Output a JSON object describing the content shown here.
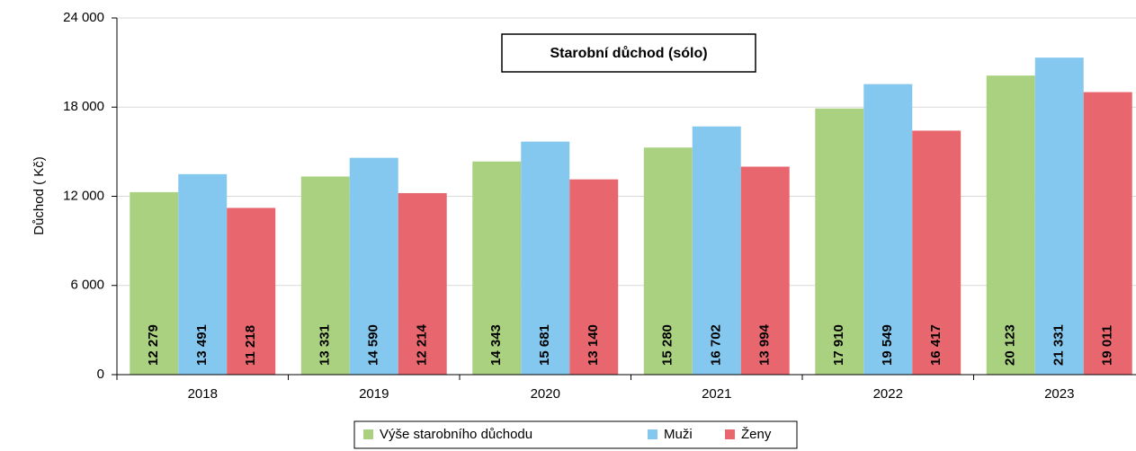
{
  "chart_data": {
    "type": "bar",
    "title": "Starobní důchod  (sólo)",
    "y_label": "Důchod ( Kč)",
    "categories": [
      "2018",
      "2019",
      "2020",
      "2021",
      "2022",
      "2023"
    ],
    "series": [
      {
        "name": "Výše starobního důchodu",
        "color": "#a9d17f",
        "values": [
          12279,
          13331,
          14343,
          15280,
          17910,
          20123
        ],
        "value_labels": [
          "12 279",
          "13 331",
          "14 343",
          "15 280",
          "17 910",
          "20 123"
        ]
      },
      {
        "name": "Muži",
        "color": "#85c8ef",
        "values": [
          13491,
          14590,
          15681,
          16702,
          19549,
          21331
        ],
        "value_labels": [
          "13 491",
          "14 590",
          "15 681",
          "16 702",
          "19 549",
          "21 331"
        ]
      },
      {
        "name": "Ženy",
        "color": "#e8666d",
        "values": [
          11218,
          12214,
          13140,
          13994,
          16417,
          19011
        ],
        "value_labels": [
          "11 218",
          "12 214",
          "13 140",
          "13 994",
          "16 417",
          "19 011"
        ]
      }
    ],
    "ylim": [
      0,
      24000
    ],
    "yticks": [
      0,
      {
        "value": 6000,
        "label": "6 000"
      },
      {
        "value": 12000,
        "label": "12 000"
      },
      {
        "value": 18000,
        "label": "18 000"
      },
      {
        "value": 24000,
        "label": "24 000"
      }
    ],
    "grid": true,
    "legend": "bottom"
  }
}
